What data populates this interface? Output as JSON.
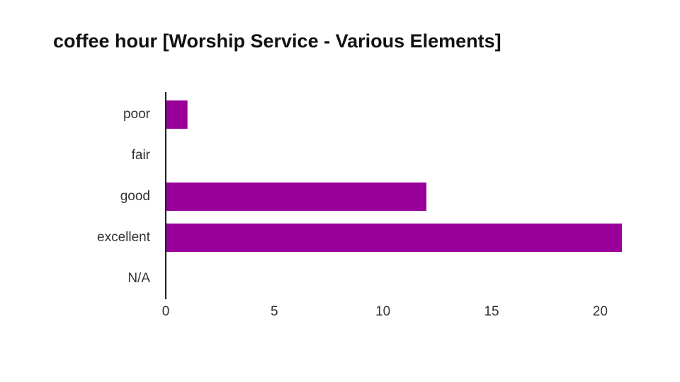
{
  "chart_data": {
    "type": "bar",
    "title": "coffee hour [Worship Service - Various Elements]",
    "categories": [
      "poor",
      "fair",
      "good",
      "excellent",
      "N/A"
    ],
    "values": [
      1,
      0,
      12,
      21,
      0
    ],
    "color": "#990099",
    "xlim": [
      0,
      21
    ],
    "xticks": [
      0,
      5,
      10,
      15,
      20
    ]
  }
}
